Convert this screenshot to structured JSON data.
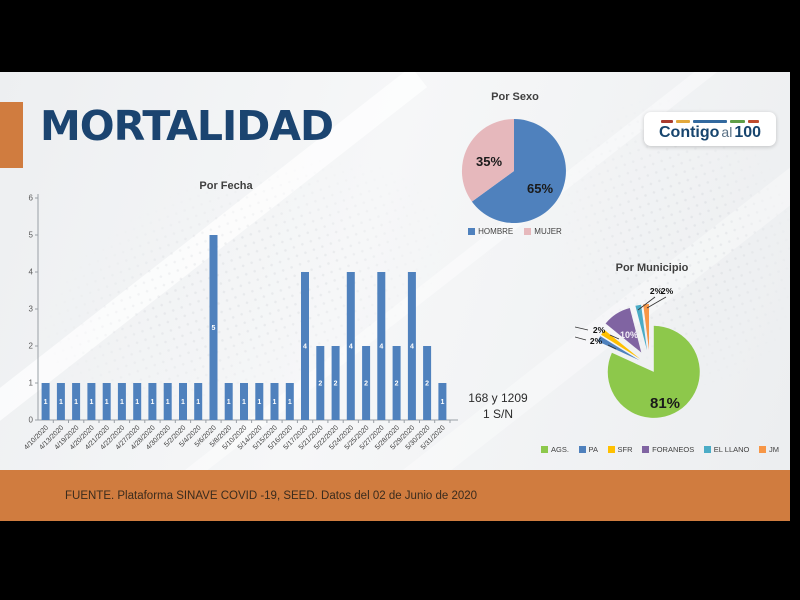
{
  "slide": {
    "title": "MORTALIDAD",
    "title_color": "#1B4470",
    "accent_color": "#D07C3F",
    "background_color": "#F2F3F4"
  },
  "logo": {
    "text_main": "Contigo",
    "text_mid": "al",
    "text_end": "100",
    "dash_colors": [
      "#A93A2E",
      "#E3A93C",
      "#32699F",
      "#5F9E47",
      "#BF4B2D"
    ]
  },
  "note": {
    "line1": "168 y 1209",
    "line2": "1 S/N"
  },
  "footer": {
    "text": "FUENTE. Plataforma SINAVE COVID -19, SEED. Datos del 02 de Junio de 2020",
    "background": "#D07C3F"
  },
  "chart_data": [
    {
      "type": "bar",
      "title": "Por Fecha",
      "categories": [
        "4/10/2020",
        "4/13/2020",
        "4/19/2020",
        "4/20/2020",
        "4/21/2020",
        "4/22/2020",
        "4/27/2020",
        "4/28/2020",
        "4/30/2020",
        "5/2/2020",
        "5/4/2020",
        "5/6/2020",
        "5/8/2020",
        "5/10/2020",
        "5/14/2020",
        "5/15/2020",
        "5/16/2020",
        "5/17/2020",
        "5/21/2020",
        "5/22/2020",
        "5/24/2020",
        "5/25/2020",
        "5/27/2020",
        "5/28/2020",
        "5/29/2020",
        "5/30/2020",
        "5/31/2020"
      ],
      "values": [
        1,
        1,
        1,
        1,
        1,
        1,
        1,
        1,
        1,
        1,
        1,
        5,
        1,
        1,
        1,
        1,
        1,
        4,
        2,
        2,
        4,
        2,
        4,
        2,
        4,
        2,
        1
      ],
      "xlabel": "",
      "ylabel": "",
      "ylim": [
        0,
        6
      ],
      "yticks": [
        0,
        1,
        2,
        3,
        4,
        5,
        6
      ],
      "grid": false,
      "bar_color": "#4F81BD",
      "value_label_color": "#FFFFFF"
    },
    {
      "type": "pie",
      "title": "Por Sexo",
      "legend_position": "bottom",
      "series": [
        {
          "label": "HOMBRE",
          "value": 65,
          "color": "#4F81BD",
          "label_text": "65%",
          "label_color": "#1a1a1a"
        },
        {
          "label": "MUJER",
          "value": 35,
          "color": "#E6B8BC",
          "label_text": "35%",
          "label_color": "#1a1a1a"
        }
      ]
    },
    {
      "type": "pie",
      "title": "Por Municipio",
      "legend_position": "bottom",
      "exploded": true,
      "series": [
        {
          "label": "AGS.",
          "value": 81,
          "color": "#8DC84B",
          "label_text": "81%",
          "label_color": "#1a1a1a"
        },
        {
          "label": "PA",
          "value": 2,
          "color": "#4F81BD",
          "label_text": "2%",
          "label_color": "#111111"
        },
        {
          "label": "SFR",
          "value": 2,
          "color": "#FFC000",
          "label_text": "2%",
          "label_color": "#111111"
        },
        {
          "label": "FORANEOS",
          "value": 10,
          "color": "#8064A2",
          "label_text": "10%",
          "label_color": "#f4f0f8"
        },
        {
          "label": "EL LLANO",
          "value": 2,
          "color": "#4BACC6",
          "label_text": "2%",
          "label_color": "#111111"
        },
        {
          "label": "JM",
          "value": 2,
          "color": "#F79646",
          "label_text": "2%",
          "label_color": "#111111"
        }
      ]
    }
  ]
}
